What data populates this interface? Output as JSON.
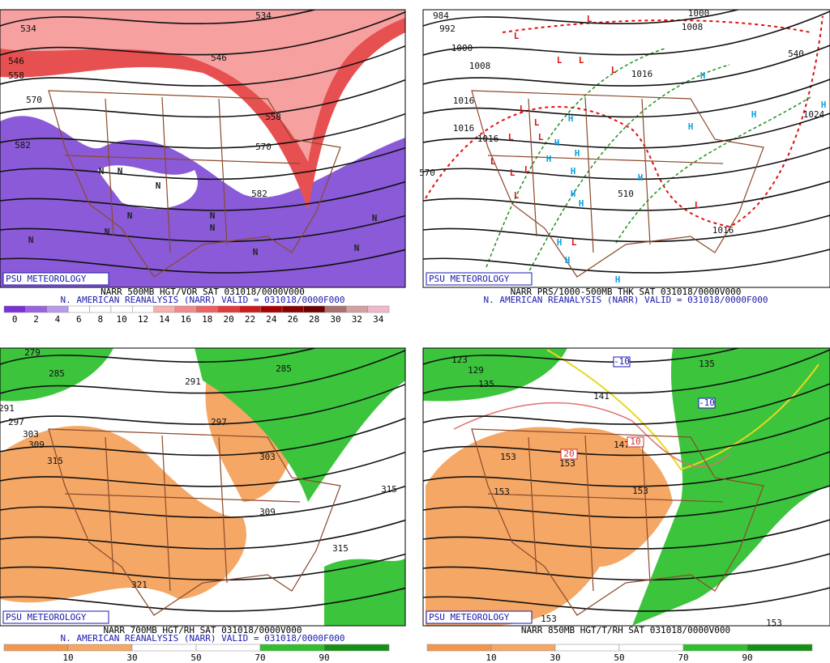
{
  "panels": [
    {
      "badge": "PSU METEOROLOGY",
      "title": "NARR 500MB HGT/VOR SAT 031018/0000V000",
      "subtitle": "N. AMERICAN REANALYSIS (NARR) VALID = 031018/0000F000",
      "colorbar": {
        "ticks": [
          0,
          2,
          4,
          6,
          8,
          10,
          12,
          14,
          16,
          18,
          20,
          22,
          24,
          26,
          28,
          30,
          32,
          34
        ],
        "colors": [
          "#7b2fd6",
          "#9a62e0",
          "#b79aea",
          "#ffffff",
          "#ffffff",
          "#ffffff",
          "#ffffff",
          "#f6b0b0",
          "#f28a8a",
          "#ec6262",
          "#e03a3a",
          "#cc1a1a",
          "#a80000",
          "#8a0000",
          "#6e0000",
          "#a87070",
          "#d2a0a0",
          "#f0b8c8"
        ]
      },
      "contour_labels": [
        534,
        546,
        558,
        570,
        582,
        558,
        570,
        582,
        534,
        546
      ],
      "markers": [
        "N",
        "N",
        "N",
        "N",
        "N",
        "N",
        "N",
        "N",
        "N",
        "N",
        "N"
      ]
    },
    {
      "badge": "PSU METEOROLOGY",
      "title": "NARR PRS/1000-500MB THK SAT 031018/0000V000",
      "subtitle": "N. AMERICAN REANALYSIS (NARR) VALID = 031018/0000F000",
      "contour_labels": [
        984,
        992,
        1000,
        1008,
        1016,
        1016,
        1016,
        1000,
        1008,
        1016,
        1016,
        540,
        570,
        510,
        1024
      ],
      "markers": [
        "L",
        "L",
        "L",
        "L",
        "L",
        "L",
        "L",
        "L",
        "L",
        "L",
        "L",
        "L",
        "L",
        "L",
        "L",
        "H",
        "H",
        "H",
        "H",
        "H",
        "H",
        "H",
        "H",
        "H",
        "H",
        "H",
        "H",
        "H",
        "H",
        "H"
      ]
    },
    {
      "badge": "PSU METEOROLOGY",
      "title": "NARR 700MB HGT/RH SAT 031018/0000V000",
      "subtitle": "N. AMERICAN REANALYSIS (NARR) VALID = 031018/0000F000",
      "colorbar": {
        "ticks": [
          10,
          30,
          50,
          70,
          90
        ],
        "colors": [
          "#f0964e",
          "#f5a765",
          "#ffffff",
          "#ffffff",
          "#2fbf2f",
          "#178f17"
        ]
      },
      "contour_labels": [
        279,
        285,
        291,
        297,
        303,
        309,
        315,
        291,
        297,
        303,
        309,
        315,
        321,
        285,
        315
      ]
    },
    {
      "badge": "PSU METEOROLOGY",
      "title": "NARR 850MB HGT/T/RH SAT 031018/0000V000",
      "colorbar": {
        "ticks": [
          10,
          30,
          50,
          70,
          90
        ],
        "colors": [
          "#f0964e",
          "#f5a765",
          "#ffffff",
          "#ffffff",
          "#2fbf2f",
          "#178f17"
        ]
      },
      "contour_labels": [
        123,
        129,
        135,
        141,
        147,
        153,
        153,
        153,
        153,
        153,
        153,
        135,
        -10,
        -10,
        20,
        10
      ]
    }
  ]
}
